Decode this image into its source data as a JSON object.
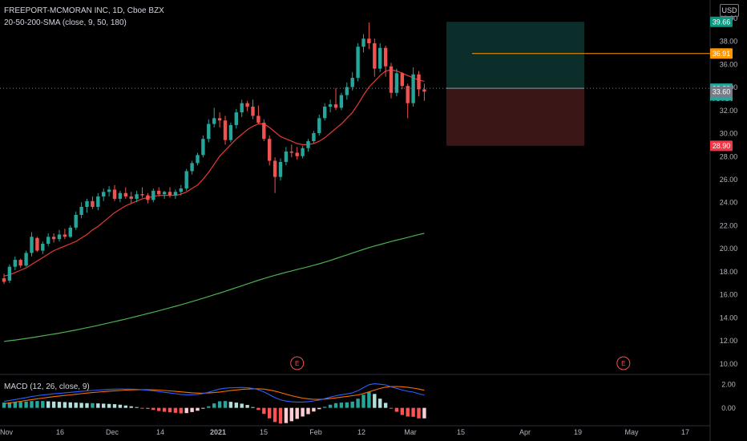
{
  "header": {
    "symbol_line": "FREEPORT-MCMORAN INC, 1D, Cboe BZX",
    "indicator_line": "20-50-200-SMA (close, 9, 50, 180)",
    "macd_line": "MACD (12, 26, close, 9)"
  },
  "currency_label": "USD",
  "countdown": "03:50:00",
  "colors": {
    "background": "#000000",
    "up": "#26a69a",
    "down": "#ef5350",
    "sma_fast": "#e53935",
    "sma_slow": "#4caf50",
    "target_line": "#ff9800",
    "profit_zone": "#0b2e2a",
    "loss_zone": "#3a1616",
    "macd_line": "#2962ff",
    "signal_line": "#ff6d00"
  },
  "chart_data": [
    {
      "type": "candlestick",
      "title": "FREEPORT-MCMORAN INC, 1D, Cboe BZX",
      "y_ticks": [
        10.0,
        12.0,
        14.0,
        16.0,
        18.0,
        20.0,
        22.0,
        24.0,
        26.0,
        28.0,
        30.0,
        32.0,
        34.0,
        36.0,
        38.0,
        40.0
      ],
      "ylim": [
        9.4,
        41.0
      ],
      "x_ticks": [
        "Nov",
        "16",
        "Dec",
        "14",
        "2021",
        "15",
        "Feb",
        "12",
        "Mar",
        "15",
        "Apr",
        "19",
        "May",
        "17"
      ],
      "candles": [
        {
          "o": 17.4,
          "h": 17.8,
          "l": 16.9,
          "c": 17.1
        },
        {
          "o": 17.2,
          "h": 18.6,
          "l": 17.0,
          "c": 18.4
        },
        {
          "o": 18.4,
          "h": 19.3,
          "l": 18.1,
          "c": 19.0
        },
        {
          "o": 19.0,
          "h": 19.1,
          "l": 18.3,
          "c": 18.5
        },
        {
          "o": 18.5,
          "h": 19.8,
          "l": 18.4,
          "c": 19.6
        },
        {
          "o": 19.6,
          "h": 21.4,
          "l": 19.3,
          "c": 21.0
        },
        {
          "o": 20.9,
          "h": 21.0,
          "l": 19.7,
          "c": 19.8
        },
        {
          "o": 19.8,
          "h": 20.6,
          "l": 19.5,
          "c": 20.4
        },
        {
          "o": 20.4,
          "h": 21.3,
          "l": 20.2,
          "c": 21.0
        },
        {
          "o": 21.0,
          "h": 21.3,
          "l": 20.5,
          "c": 20.8
        },
        {
          "o": 20.8,
          "h": 21.6,
          "l": 20.6,
          "c": 21.2
        },
        {
          "o": 21.2,
          "h": 21.7,
          "l": 20.8,
          "c": 21.0
        },
        {
          "o": 21.0,
          "h": 22.0,
          "l": 20.9,
          "c": 21.8
        },
        {
          "o": 21.8,
          "h": 23.2,
          "l": 21.6,
          "c": 22.9
        },
        {
          "o": 22.9,
          "h": 24.0,
          "l": 22.6,
          "c": 23.6
        },
        {
          "o": 23.6,
          "h": 24.3,
          "l": 23.1,
          "c": 24.1
        },
        {
          "o": 24.1,
          "h": 24.5,
          "l": 23.4,
          "c": 23.6
        },
        {
          "o": 23.6,
          "h": 24.8,
          "l": 23.3,
          "c": 24.5
        },
        {
          "o": 24.5,
          "h": 25.2,
          "l": 24.1,
          "c": 24.9
        },
        {
          "o": 24.9,
          "h": 25.4,
          "l": 24.5,
          "c": 25.1
        },
        {
          "o": 25.1,
          "h": 25.5,
          "l": 24.1,
          "c": 24.3
        },
        {
          "o": 24.3,
          "h": 25.0,
          "l": 24.0,
          "c": 24.8
        },
        {
          "o": 24.8,
          "h": 25.3,
          "l": 24.3,
          "c": 24.5
        },
        {
          "o": 24.5,
          "h": 24.9,
          "l": 23.9,
          "c": 24.3
        },
        {
          "o": 24.3,
          "h": 25.0,
          "l": 24.0,
          "c": 24.7
        },
        {
          "o": 24.7,
          "h": 25.3,
          "l": 24.4,
          "c": 24.6
        },
        {
          "o": 24.6,
          "h": 24.8,
          "l": 23.9,
          "c": 24.2
        },
        {
          "o": 24.2,
          "h": 25.2,
          "l": 24.0,
          "c": 25.0
        },
        {
          "o": 25.0,
          "h": 25.3,
          "l": 24.5,
          "c": 24.7
        },
        {
          "o": 24.7,
          "h": 25.0,
          "l": 24.3,
          "c": 24.9
        },
        {
          "o": 24.9,
          "h": 25.3,
          "l": 24.4,
          "c": 24.6
        },
        {
          "o": 24.6,
          "h": 25.1,
          "l": 24.3,
          "c": 24.9
        },
        {
          "o": 24.9,
          "h": 25.5,
          "l": 24.6,
          "c": 25.2
        },
        {
          "o": 25.2,
          "h": 26.9,
          "l": 25.0,
          "c": 26.7
        },
        {
          "o": 26.7,
          "h": 27.6,
          "l": 26.4,
          "c": 27.4
        },
        {
          "o": 27.4,
          "h": 28.3,
          "l": 27.2,
          "c": 28.1
        },
        {
          "o": 28.1,
          "h": 29.8,
          "l": 27.9,
          "c": 29.5
        },
        {
          "o": 29.5,
          "h": 31.2,
          "l": 29.2,
          "c": 30.8
        },
        {
          "o": 30.8,
          "h": 32.2,
          "l": 30.5,
          "c": 31.3
        },
        {
          "o": 31.3,
          "h": 31.8,
          "l": 30.5,
          "c": 31.1
        },
        {
          "o": 31.1,
          "h": 31.5,
          "l": 29.0,
          "c": 29.4
        },
        {
          "o": 29.4,
          "h": 30.9,
          "l": 29.2,
          "c": 30.7
        },
        {
          "o": 30.7,
          "h": 32.1,
          "l": 30.4,
          "c": 31.8
        },
        {
          "o": 31.8,
          "h": 32.9,
          "l": 31.4,
          "c": 32.6
        },
        {
          "o": 32.6,
          "h": 32.8,
          "l": 31.9,
          "c": 32.3
        },
        {
          "o": 32.3,
          "h": 32.9,
          "l": 31.2,
          "c": 31.5
        },
        {
          "o": 31.5,
          "h": 32.4,
          "l": 30.8,
          "c": 30.9
        },
        {
          "o": 30.9,
          "h": 31.2,
          "l": 29.3,
          "c": 29.5
        },
        {
          "o": 29.5,
          "h": 29.8,
          "l": 27.2,
          "c": 27.6
        },
        {
          "o": 27.6,
          "h": 27.9,
          "l": 24.8,
          "c": 26.2
        },
        {
          "o": 26.2,
          "h": 27.8,
          "l": 25.9,
          "c": 27.5
        },
        {
          "o": 27.5,
          "h": 28.8,
          "l": 27.2,
          "c": 28.4
        },
        {
          "o": 28.4,
          "h": 29.0,
          "l": 27.9,
          "c": 28.3
        },
        {
          "o": 28.3,
          "h": 28.8,
          "l": 27.7,
          "c": 28.0
        },
        {
          "o": 28.0,
          "h": 28.9,
          "l": 27.8,
          "c": 28.7
        },
        {
          "o": 28.7,
          "h": 29.5,
          "l": 28.4,
          "c": 29.3
        },
        {
          "o": 29.3,
          "h": 30.2,
          "l": 29.1,
          "c": 30.0
        },
        {
          "o": 30.0,
          "h": 31.6,
          "l": 29.8,
          "c": 31.3
        },
        {
          "o": 31.3,
          "h": 32.6,
          "l": 31.1,
          "c": 32.3
        },
        {
          "o": 32.3,
          "h": 32.9,
          "l": 31.8,
          "c": 32.5
        },
        {
          "o": 32.5,
          "h": 33.9,
          "l": 32.0,
          "c": 32.2
        },
        {
          "o": 32.2,
          "h": 33.5,
          "l": 32.0,
          "c": 33.3
        },
        {
          "o": 33.3,
          "h": 34.4,
          "l": 32.9,
          "c": 34.0
        },
        {
          "o": 34.0,
          "h": 35.3,
          "l": 33.7,
          "c": 34.8
        },
        {
          "o": 34.8,
          "h": 37.8,
          "l": 34.5,
          "c": 37.5
        },
        {
          "o": 37.5,
          "h": 38.6,
          "l": 37.0,
          "c": 38.2
        },
        {
          "o": 38.2,
          "h": 39.6,
          "l": 37.3,
          "c": 37.8
        },
        {
          "o": 37.8,
          "h": 38.2,
          "l": 34.9,
          "c": 35.6
        },
        {
          "o": 35.6,
          "h": 37.8,
          "l": 35.3,
          "c": 37.4
        },
        {
          "o": 37.4,
          "h": 37.6,
          "l": 34.9,
          "c": 35.8
        },
        {
          "o": 35.8,
          "h": 36.1,
          "l": 33.0,
          "c": 33.5
        },
        {
          "o": 33.5,
          "h": 35.6,
          "l": 33.2,
          "c": 35.2
        },
        {
          "o": 35.2,
          "h": 35.3,
          "l": 33.8,
          "c": 34.1
        },
        {
          "o": 34.1,
          "h": 34.3,
          "l": 31.3,
          "c": 32.6
        },
        {
          "o": 32.6,
          "h": 35.7,
          "l": 32.3,
          "c": 35.1
        },
        {
          "o": 35.1,
          "h": 35.4,
          "l": 33.2,
          "c": 33.8
        },
        {
          "o": 33.8,
          "h": 34.3,
          "l": 32.8,
          "c": 33.6
        }
      ],
      "sma_fast": [
        17.6,
        17.7,
        17.9,
        18.1,
        18.3,
        18.6,
        18.9,
        19.2,
        19.5,
        19.8,
        20.0,
        20.2,
        20.4,
        20.6,
        20.9,
        21.2,
        21.6,
        21.9,
        22.3,
        22.7,
        23.1,
        23.4,
        23.7,
        23.9,
        24.1,
        24.3,
        24.4,
        24.5,
        24.6,
        24.6,
        24.6,
        24.6,
        24.7,
        24.9,
        25.2,
        25.5,
        26.0,
        26.6,
        27.3,
        28.0,
        28.5,
        29.0,
        29.5,
        29.9,
        30.3,
        30.6,
        30.8,
        30.8,
        30.5,
        30.1,
        29.7,
        29.5,
        29.3,
        29.1,
        29.0,
        29.0,
        29.1,
        29.3,
        29.6,
        30.0,
        30.4,
        30.8,
        31.3,
        31.8,
        32.5,
        33.3,
        34.0,
        34.5,
        35.0,
        35.4,
        35.5,
        35.4,
        35.2,
        35.0,
        34.8,
        34.6,
        34.5
      ],
      "sma_slow": [
        11.92,
        11.98,
        12.04,
        12.11,
        12.18,
        12.25,
        12.32,
        12.4,
        12.48,
        12.56,
        12.64,
        12.73,
        12.82,
        12.91,
        13.01,
        13.11,
        13.21,
        13.31,
        13.42,
        13.53,
        13.64,
        13.75,
        13.86,
        13.98,
        14.1,
        14.22,
        14.34,
        14.46,
        14.58,
        14.71,
        14.84,
        14.97,
        15.1,
        15.24,
        15.38,
        15.52,
        15.67,
        15.82,
        15.97,
        16.12,
        16.27,
        16.43,
        16.59,
        16.75,
        16.91,
        17.07,
        17.23,
        17.38,
        17.52,
        17.66,
        17.79,
        17.92,
        18.04,
        18.16,
        18.28,
        18.4,
        18.53,
        18.66,
        18.8,
        18.95,
        19.11,
        19.27,
        19.43,
        19.59,
        19.75,
        19.91,
        20.06,
        20.2,
        20.33,
        20.46,
        20.59,
        20.71,
        20.83,
        20.95,
        21.07,
        21.19,
        21.3
      ],
      "position": {
        "target": 39.66,
        "entry": 33.89,
        "stop": 28.9
      },
      "target_line": 36.91,
      "price_labels": [
        {
          "value": 39.66,
          "text": "39.66",
          "color": "#089981"
        },
        {
          "value": 36.91,
          "text": "36.91",
          "color": "#ff9800"
        },
        {
          "value": 33.89,
          "text": "33.89",
          "color": "#26a69a"
        },
        {
          "value": 33.6,
          "text": "33.60",
          "color": "#787b86"
        },
        {
          "value": 28.9,
          "text": "28.90",
          "color": "#f23645"
        }
      ],
      "event_markers": [
        {
          "x_day": 53,
          "label": "E"
        },
        {
          "x_day": 112,
          "label": "E"
        }
      ]
    },
    {
      "type": "macd",
      "title": "MACD (12, 26, close, 9)",
      "y_ticks": [
        2.0,
        0.0
      ],
      "ylim": [
        -1.3,
        2.6
      ],
      "macd": [
        0.55,
        0.62,
        0.7,
        0.78,
        0.86,
        0.95,
        1.02,
        1.08,
        1.13,
        1.18,
        1.22,
        1.26,
        1.3,
        1.34,
        1.38,
        1.42,
        1.46,
        1.49,
        1.52,
        1.55,
        1.57,
        1.58,
        1.58,
        1.57,
        1.55,
        1.52,
        1.48,
        1.43,
        1.37,
        1.31,
        1.25,
        1.19,
        1.13,
        1.1,
        1.1,
        1.13,
        1.2,
        1.31,
        1.45,
        1.58,
        1.65,
        1.68,
        1.7,
        1.71,
        1.69,
        1.63,
        1.52,
        1.34,
        1.1,
        0.86,
        0.68,
        0.57,
        0.51,
        0.49,
        0.49,
        0.52,
        0.58,
        0.66,
        0.77,
        0.9,
        1.02,
        1.1,
        1.17,
        1.26,
        1.44,
        1.7,
        1.94,
        2.02,
        1.98,
        1.93,
        1.76,
        1.64,
        1.5,
        1.39,
        1.32,
        1.18,
        1.08
      ],
      "signal": [
        0.35,
        0.41,
        0.48,
        0.55,
        0.62,
        0.69,
        0.76,
        0.82,
        0.88,
        0.94,
        0.99,
        1.04,
        1.09,
        1.14,
        1.19,
        1.24,
        1.28,
        1.32,
        1.36,
        1.4,
        1.43,
        1.46,
        1.49,
        1.51,
        1.52,
        1.53,
        1.52,
        1.51,
        1.49,
        1.46,
        1.42,
        1.38,
        1.34,
        1.3,
        1.26,
        1.24,
        1.23,
        1.25,
        1.28,
        1.33,
        1.39,
        1.45,
        1.5,
        1.55,
        1.58,
        1.6,
        1.6,
        1.57,
        1.5,
        1.4,
        1.28,
        1.15,
        1.02,
        0.91,
        0.82,
        0.76,
        0.72,
        0.71,
        0.73,
        0.78,
        0.84,
        0.9,
        0.96,
        1.02,
        1.09,
        1.2,
        1.34,
        1.49,
        1.63,
        1.74,
        1.78,
        1.79,
        1.77,
        1.72,
        1.66,
        1.58,
        1.48
      ]
    }
  ]
}
